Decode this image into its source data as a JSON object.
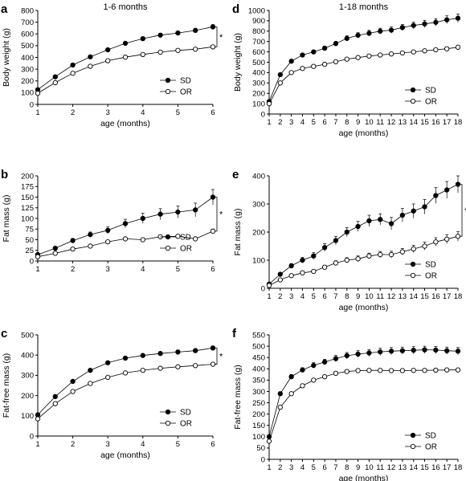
{
  "chart_data": [
    {
      "panel": "a",
      "title": "1-6 months",
      "type": "line",
      "xlabel": "age (months)",
      "ylabel": "Body weight (g)",
      "xlim": [
        1,
        6
      ],
      "ylim": [
        0,
        800
      ],
      "xticks": [
        "1",
        "2",
        "3",
        "4",
        "5",
        "6"
      ],
      "yticks": [
        "0",
        "100",
        "200",
        "300",
        "400",
        "500",
        "600",
        "700",
        "800"
      ],
      "legend_position": "bottom-right",
      "significance": "*",
      "series": [
        {
          "name": "SD",
          "marker": "filled",
          "x": [
            1,
            1.5,
            2,
            2.5,
            3,
            3.5,
            4,
            4.5,
            5,
            5.5,
            6
          ],
          "y": [
            125,
            235,
            335,
            405,
            465,
            520,
            560,
            590,
            608,
            630,
            660
          ],
          "err": [
            8,
            8,
            8,
            8,
            10,
            12,
            15,
            15,
            15,
            18,
            20
          ]
        },
        {
          "name": "OR",
          "marker": "open",
          "x": [
            1,
            1.5,
            2,
            2.5,
            3,
            3.5,
            4,
            4.5,
            5,
            5.5,
            6
          ],
          "y": [
            95,
            185,
            265,
            325,
            372,
            402,
            425,
            445,
            460,
            470,
            490
          ],
          "err": [
            5,
            5,
            5,
            5,
            5,
            6,
            6,
            6,
            6,
            6,
            8
          ]
        }
      ]
    },
    {
      "panel": "b",
      "title": "",
      "type": "line",
      "xlabel": "",
      "ylabel": "Fat mass (g)",
      "xlim": [
        1,
        6
      ],
      "ylim": [
        0,
        200
      ],
      "xticks": [
        "1",
        "2",
        "3",
        "4",
        "5",
        "6"
      ],
      "yticks": [
        "0",
        "25",
        "50",
        "75",
        "100",
        "125",
        "150",
        "175",
        "200"
      ],
      "legend_position": "bottom-right",
      "significance": "*",
      "series": [
        {
          "name": "SD",
          "marker": "filled",
          "x": [
            1,
            1.5,
            2,
            2.5,
            3,
            3.5,
            4,
            4.5,
            5,
            5.5,
            6
          ],
          "y": [
            15,
            30,
            48,
            62,
            72,
            88,
            100,
            110,
            115,
            120,
            150
          ],
          "err": [
            3,
            4,
            5,
            6,
            8,
            10,
            12,
            13,
            14,
            16,
            18
          ]
        },
        {
          "name": "OR",
          "marker": "open",
          "x": [
            1,
            1.5,
            2,
            2.5,
            3,
            3.5,
            4,
            4.5,
            5,
            5.5,
            6
          ],
          "y": [
            10,
            18,
            28,
            35,
            45,
            52,
            50,
            57,
            58,
            52,
            70
          ],
          "err": [
            2,
            2,
            3,
            3,
            3,
            4,
            4,
            4,
            4,
            4,
            5
          ]
        }
      ]
    },
    {
      "panel": "c",
      "title": "",
      "type": "line",
      "xlabel": "age (months)",
      "ylabel": "Fat-free mass (g)",
      "xlim": [
        1,
        6
      ],
      "ylim": [
        0,
        500
      ],
      "xticks": [
        "1",
        "2",
        "3",
        "4",
        "5",
        "6"
      ],
      "yticks": [
        "0",
        "100",
        "200",
        "300",
        "400",
        "500"
      ],
      "legend_position": "bottom-right",
      "significance": "*",
      "series": [
        {
          "name": "SD",
          "marker": "filled",
          "x": [
            1,
            1.5,
            2,
            2.5,
            3,
            3.5,
            4,
            4.5,
            5,
            5.5,
            6
          ],
          "y": [
            105,
            195,
            270,
            325,
            362,
            385,
            398,
            408,
            415,
            422,
            435
          ],
          "err": [
            6,
            6,
            6,
            7,
            8,
            8,
            9,
            9,
            10,
            10,
            10
          ]
        },
        {
          "name": "OR",
          "marker": "open",
          "x": [
            1,
            1.5,
            2,
            2.5,
            3,
            3.5,
            4,
            4.5,
            5,
            5.5,
            6
          ],
          "y": [
            85,
            160,
            220,
            260,
            290,
            312,
            325,
            335,
            342,
            348,
            355
          ],
          "err": [
            4,
            4,
            4,
            5,
            5,
            5,
            5,
            5,
            6,
            6,
            6
          ]
        }
      ]
    },
    {
      "panel": "d",
      "title": "1-18 months",
      "type": "line",
      "xlabel": "age (months)",
      "ylabel": "Body weight (g)",
      "xlim": [
        1,
        18
      ],
      "ylim": [
        0,
        1000
      ],
      "xticks": [
        "1",
        "2",
        "3",
        "4",
        "5",
        "6",
        "7",
        "8",
        "9",
        "10",
        "11",
        "12",
        "13",
        "14",
        "15",
        "16",
        "17",
        "18"
      ],
      "yticks": [
        "0",
        "100",
        "200",
        "300",
        "400",
        "500",
        "600",
        "700",
        "800",
        "900",
        "1000"
      ],
      "legend_position": "bottom-right",
      "significance": "",
      "series": [
        {
          "name": "SD",
          "marker": "filled",
          "x": [
            1,
            2,
            3,
            4,
            5,
            6,
            7,
            8,
            9,
            10,
            11,
            12,
            13,
            14,
            15,
            16,
            17,
            18
          ],
          "y": [
            120,
            380,
            510,
            570,
            600,
            635,
            680,
            730,
            760,
            780,
            800,
            810,
            835,
            855,
            870,
            885,
            910,
            925
          ],
          "err": [
            8,
            10,
            12,
            15,
            18,
            20,
            22,
            25,
            25,
            28,
            28,
            30,
            30,
            32,
            35,
            35,
            38,
            40
          ]
        },
        {
          "name": "OR",
          "marker": "open",
          "x": [
            1,
            2,
            3,
            4,
            5,
            6,
            7,
            8,
            9,
            10,
            11,
            12,
            13,
            14,
            15,
            16,
            17,
            18
          ],
          "y": [
            100,
            300,
            400,
            440,
            460,
            480,
            505,
            530,
            545,
            560,
            570,
            580,
            590,
            600,
            610,
            620,
            630,
            645
          ],
          "err": [
            5,
            6,
            8,
            8,
            10,
            10,
            12,
            12,
            12,
            14,
            14,
            15,
            15,
            15,
            16,
            16,
            18,
            18
          ]
        }
      ]
    },
    {
      "panel": "e",
      "title": "",
      "type": "line",
      "xlabel": "age (months)",
      "ylabel": "Fat mass (g)",
      "xlim": [
        1,
        18
      ],
      "ylim": [
        0,
        400
      ],
      "xticks": [
        "1",
        "2",
        "3",
        "4",
        "5",
        "6",
        "7",
        "8",
        "9",
        "10",
        "11",
        "12",
        "13",
        "14",
        "15",
        "16",
        "17",
        "18"
      ],
      "yticks": [
        "0",
        "100",
        "200",
        "300",
        "400"
      ],
      "legend_position": "bottom-right",
      "significance": "*",
      "series": [
        {
          "name": "SD",
          "marker": "filled",
          "x": [
            1,
            2,
            3,
            4,
            5,
            6,
            7,
            8,
            9,
            10,
            11,
            12,
            13,
            14,
            15,
            16,
            17,
            18
          ],
          "y": [
            15,
            50,
            80,
            100,
            115,
            145,
            170,
            200,
            220,
            240,
            245,
            230,
            260,
            275,
            290,
            330,
            350,
            370
          ],
          "err": [
            4,
            6,
            8,
            10,
            12,
            14,
            15,
            16,
            18,
            20,
            20,
            22,
            24,
            25,
            26,
            28,
            30,
            30
          ]
        },
        {
          "name": "OR",
          "marker": "open",
          "x": [
            1,
            2,
            3,
            4,
            5,
            6,
            7,
            8,
            9,
            10,
            11,
            12,
            13,
            14,
            15,
            16,
            17,
            18
          ],
          "y": [
            10,
            30,
            45,
            55,
            60,
            75,
            90,
            100,
            105,
            115,
            120,
            120,
            130,
            140,
            150,
            165,
            175,
            185
          ],
          "err": [
            3,
            4,
            5,
            6,
            6,
            7,
            8,
            9,
            10,
            10,
            11,
            12,
            12,
            13,
            14,
            15,
            16,
            17
          ]
        }
      ]
    },
    {
      "panel": "f",
      "title": "",
      "type": "line",
      "xlabel": "age (months)",
      "ylabel": "Fat-free mass (g)",
      "xlim": [
        1,
        18
      ],
      "ylim": [
        0,
        550
      ],
      "xticks": [
        "1",
        "2",
        "3",
        "4",
        "5",
        "6",
        "7",
        "8",
        "9",
        "10",
        "11",
        "12",
        "13",
        "14",
        "15",
        "16",
        "17",
        "18"
      ],
      "yticks": [
        "0",
        "50",
        "100",
        "150",
        "200",
        "250",
        "300",
        "350",
        "400",
        "450",
        "500",
        "550"
      ],
      "legend_position": "bottom-right",
      "significance": "",
      "series": [
        {
          "name": "SD",
          "marker": "filled",
          "x": [
            1,
            2,
            3,
            4,
            5,
            6,
            7,
            8,
            9,
            10,
            11,
            12,
            13,
            14,
            15,
            16,
            17,
            18
          ],
          "y": [
            100,
            290,
            365,
            395,
            415,
            430,
            445,
            458,
            465,
            470,
            475,
            478,
            480,
            482,
            484,
            483,
            480,
            478
          ],
          "err": [
            6,
            8,
            10,
            10,
            12,
            12,
            14,
            14,
            15,
            15,
            16,
            16,
            16,
            16,
            16,
            16,
            16,
            16
          ]
        },
        {
          "name": "OR",
          "marker": "open",
          "x": [
            1,
            2,
            3,
            4,
            5,
            6,
            7,
            8,
            9,
            10,
            11,
            12,
            13,
            14,
            15,
            16,
            17,
            18
          ],
          "y": [
            80,
            230,
            290,
            325,
            350,
            365,
            380,
            388,
            392,
            393,
            393,
            392,
            392,
            393,
            393,
            394,
            395,
            395
          ],
          "err": [
            4,
            5,
            6,
            6,
            7,
            7,
            8,
            8,
            8,
            8,
            8,
            8,
            8,
            8,
            8,
            8,
            8,
            8
          ]
        }
      ]
    }
  ]
}
